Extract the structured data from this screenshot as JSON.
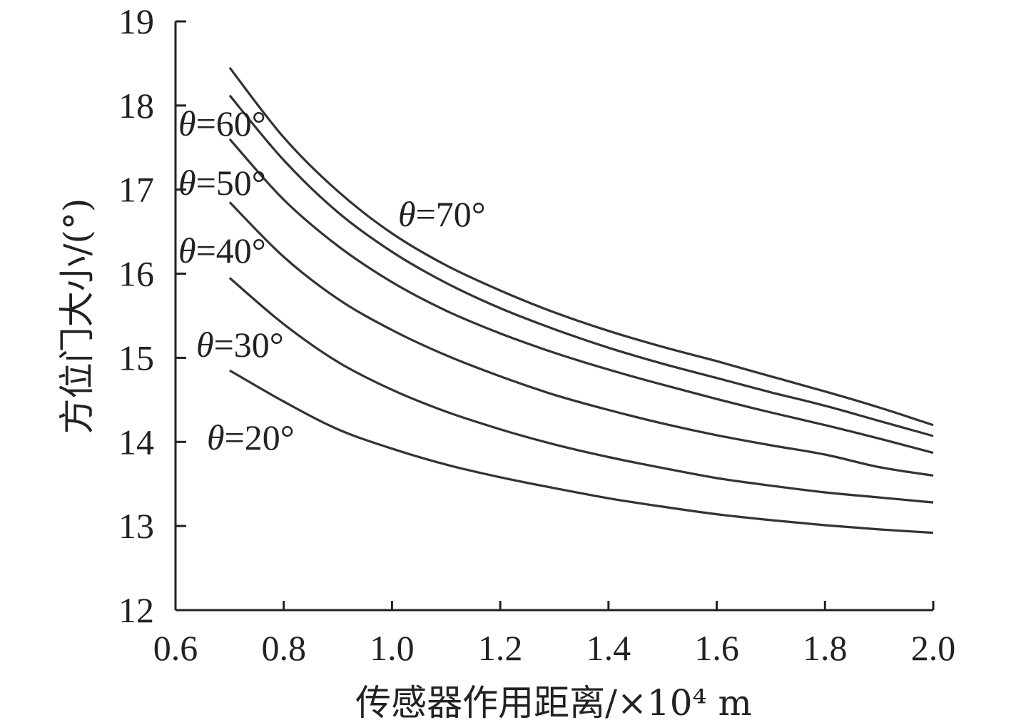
{
  "chart_data": {
    "type": "line",
    "title": "",
    "xlabel": "传感器作用距离/×10⁴ m",
    "ylabel": "方位门大小/(°)",
    "xlim": [
      0.6,
      2.0
    ],
    "ylim": [
      12,
      19
    ],
    "x_ticks": [
      "0.6",
      "0.8",
      "1.0",
      "1.2",
      "1.4",
      "1.6",
      "1.8",
      "2.0"
    ],
    "y_ticks": [
      "12",
      "13",
      "14",
      "15",
      "16",
      "17",
      "18",
      "19"
    ],
    "grid": false,
    "line_color": "#333333",
    "x": [
      0.7,
      0.8,
      0.9,
      1.0,
      1.1,
      1.2,
      1.3,
      1.4,
      1.5,
      1.6,
      1.7,
      1.8,
      1.9,
      2.0
    ],
    "series": [
      {
        "name": "θ=20°",
        "label": "θ=20°",
        "values": [
          14.85,
          14.48,
          14.15,
          13.92,
          13.73,
          13.58,
          13.45,
          13.33,
          13.23,
          13.14,
          13.07,
          13.01,
          12.96,
          12.92
        ]
      },
      {
        "name": "θ=30°",
        "label": "θ=30°",
        "values": [
          15.95,
          15.4,
          14.95,
          14.62,
          14.36,
          14.15,
          13.97,
          13.82,
          13.69,
          13.57,
          13.48,
          13.4,
          13.34,
          13.28
        ]
      },
      {
        "name": "θ=40°",
        "label": "θ=40°",
        "values": [
          16.85,
          16.2,
          15.7,
          15.33,
          15.03,
          14.78,
          14.56,
          14.38,
          14.22,
          14.08,
          13.96,
          13.85,
          13.7,
          13.6
        ]
      },
      {
        "name": "θ=50°",
        "label": "θ=50°",
        "values": [
          17.6,
          16.88,
          16.33,
          15.9,
          15.56,
          15.29,
          15.06,
          14.86,
          14.68,
          14.51,
          14.35,
          14.2,
          14.04,
          13.87
        ]
      },
      {
        "name": "θ=60°",
        "label": "θ=60°",
        "values": [
          18.12,
          17.35,
          16.73,
          16.26,
          15.89,
          15.59,
          15.34,
          15.12,
          14.93,
          14.76,
          14.59,
          14.43,
          14.25,
          14.07
        ]
      },
      {
        "name": "θ=70°",
        "label": "θ=70°",
        "values": [
          18.45,
          17.62,
          16.98,
          16.48,
          16.1,
          15.8,
          15.54,
          15.32,
          15.13,
          14.96,
          14.78,
          14.6,
          14.41,
          14.2
        ]
      }
    ]
  }
}
